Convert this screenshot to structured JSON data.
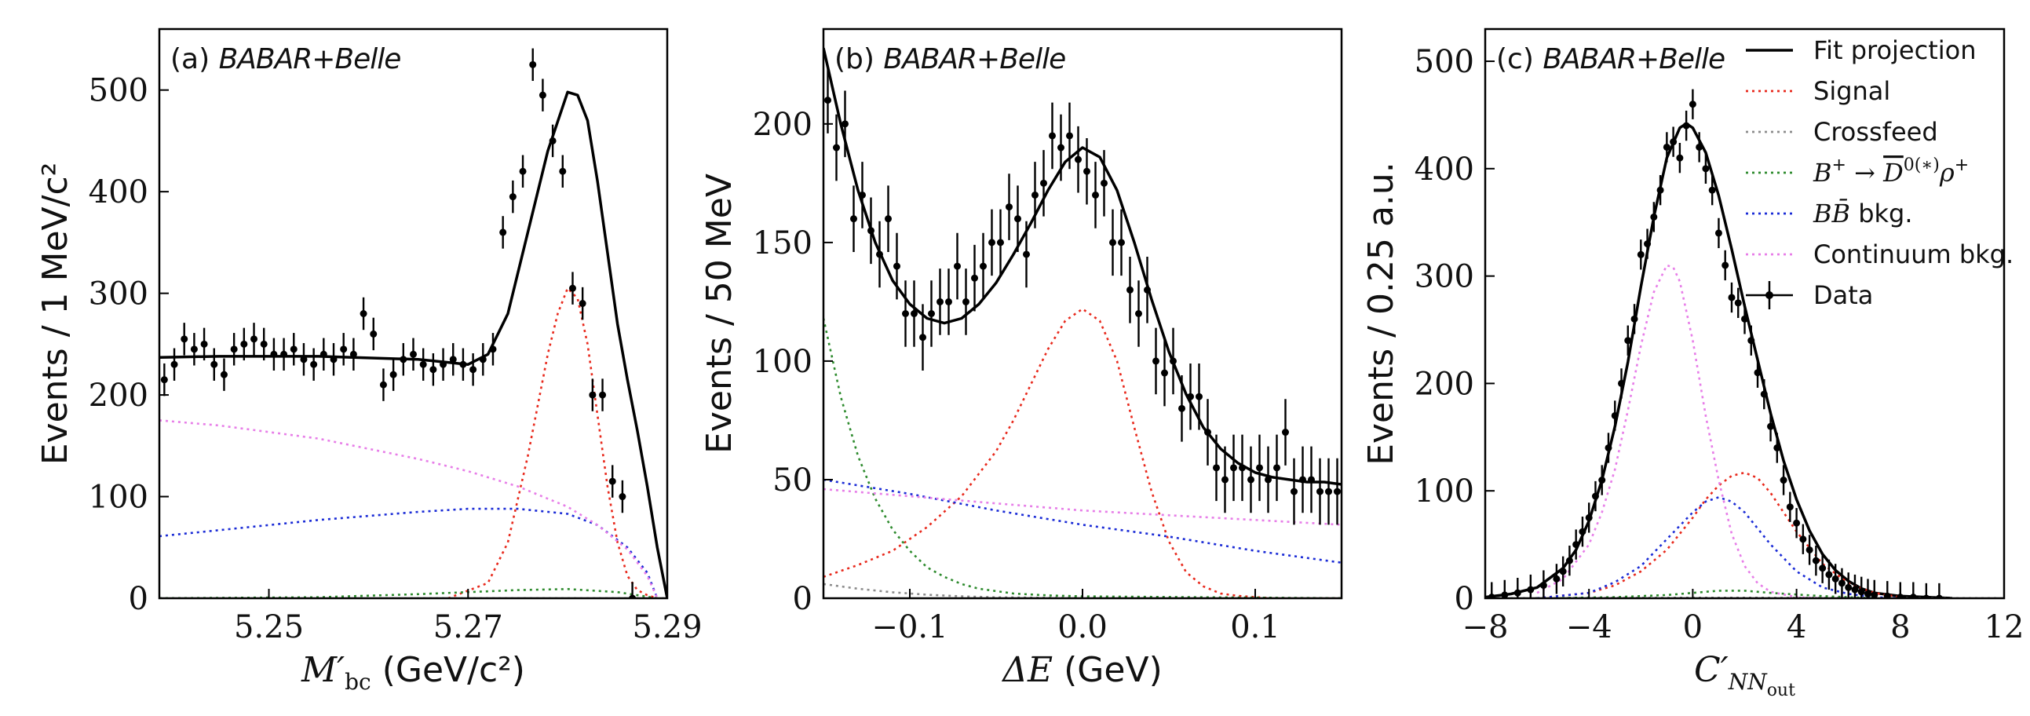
{
  "chart_data": [
    {
      "type": "line",
      "panel": "(a)",
      "experiment": "BABAR+Belle",
      "xlabel": "M'_bc (GeV/c²)",
      "ylabel": "Events / 1 MeV/c²",
      "xlim": [
        5.239,
        5.29
      ],
      "ylim": [
        0,
        560
      ],
      "xticks": [
        5.25,
        5.27,
        5.29
      ],
      "yticks": [
        0,
        100,
        200,
        300,
        400,
        500
      ],
      "data": {
        "x": [
          5.2395,
          5.2405,
          5.2415,
          5.2425,
          5.2435,
          5.2445,
          5.2455,
          5.2465,
          5.2475,
          5.2485,
          5.2495,
          5.2505,
          5.2515,
          5.2525,
          5.2535,
          5.2545,
          5.2555,
          5.2565,
          5.2575,
          5.2585,
          5.2595,
          5.2605,
          5.2615,
          5.2625,
          5.2635,
          5.2645,
          5.2655,
          5.2665,
          5.2675,
          5.2685,
          5.2695,
          5.2705,
          5.2715,
          5.2725,
          5.2735,
          5.2745,
          5.2755,
          5.2765,
          5.2775,
          5.2785,
          5.2795,
          5.2805,
          5.2815,
          5.2825,
          5.2835,
          5.2845,
          5.2855,
          5.2865
        ],
        "y": [
          215,
          230,
          255,
          245,
          250,
          230,
          220,
          245,
          250,
          255,
          250,
          240,
          240,
          245,
          235,
          230,
          240,
          235,
          245,
          240,
          280,
          260,
          210,
          220,
          235,
          240,
          230,
          225,
          230,
          235,
          230,
          225,
          235,
          245,
          360,
          395,
          420,
          525,
          495,
          450,
          420,
          305,
          290,
          200,
          200,
          115,
          100,
          0
        ],
        "err": 16
      },
      "series": [
        {
          "name": "Fit projection",
          "color": "#000000",
          "x": [
            5.239,
            5.245,
            5.255,
            5.265,
            5.268,
            5.27,
            5.272,
            5.274,
            5.276,
            5.278,
            5.28,
            5.281,
            5.282,
            5.283,
            5.284,
            5.285,
            5.286,
            5.287,
            5.288,
            5.289,
            5.29
          ],
          "y": [
            237,
            238,
            238,
            235,
            232,
            230,
            240,
            280,
            360,
            440,
            498,
            495,
            470,
            410,
            340,
            270,
            215,
            165,
            110,
            50,
            0
          ]
        },
        {
          "name": "Signal",
          "color": "#e8291c",
          "x": [
            5.268,
            5.272,
            5.274,
            5.276,
            5.278,
            5.279,
            5.28,
            5.281,
            5.282,
            5.283,
            5.284,
            5.285,
            5.286,
            5.287,
            5.288,
            5.289
          ],
          "y": [
            0,
            15,
            55,
            140,
            240,
            280,
            305,
            295,
            250,
            180,
            110,
            55,
            22,
            8,
            3,
            0
          ]
        },
        {
          "name": "Crossfeed",
          "color": "#8c8c8c",
          "x": [
            5.239,
            5.29
          ],
          "y": [
            0,
            0
          ]
        },
        {
          "name": "B+ → D̄0(*) ρ+",
          "color": "#2e8b2e",
          "x": [
            5.239,
            5.255,
            5.265,
            5.275,
            5.28,
            5.285,
            5.289
          ],
          "y": [
            0,
            1,
            4,
            8,
            9,
            6,
            0
          ]
        },
        {
          "name": "BB̄ bkg.",
          "color": "#1a2bd6",
          "x": [
            5.239,
            5.245,
            5.255,
            5.265,
            5.27,
            5.275,
            5.28,
            5.283,
            5.286,
            5.288,
            5.289
          ],
          "y": [
            61,
            67,
            77,
            85,
            88,
            88,
            83,
            72,
            50,
            25,
            0
          ]
        },
        {
          "name": "Continuum bkg.",
          "color": "#e77ee8",
          "x": [
            5.239,
            5.245,
            5.255,
            5.265,
            5.27,
            5.275,
            5.28,
            5.283,
            5.286,
            5.288,
            5.289
          ],
          "y": [
            175,
            170,
            157,
            137,
            125,
            110,
            90,
            72,
            48,
            22,
            0
          ]
        }
      ]
    },
    {
      "type": "line",
      "panel": "(b)",
      "experiment": "BABAR+Belle",
      "xlabel": "ΔE (GeV)",
      "ylabel": "Events / 50 MeV",
      "xlim": [
        -0.15,
        0.15
      ],
      "ylim": [
        0,
        240
      ],
      "xticks": [
        -0.1,
        0.0,
        0.1
      ],
      "yticks": [
        0,
        50,
        100,
        150,
        200
      ],
      "data": {
        "x": [
          -0.1475,
          -0.1425,
          -0.1375,
          -0.1325,
          -0.1275,
          -0.1225,
          -0.1175,
          -0.1125,
          -0.1075,
          -0.1025,
          -0.0975,
          -0.0925,
          -0.0875,
          -0.0825,
          -0.0775,
          -0.0725,
          -0.0675,
          -0.0625,
          -0.0575,
          -0.0525,
          -0.0475,
          -0.0425,
          -0.0375,
          -0.0325,
          -0.0275,
          -0.0225,
          -0.0175,
          -0.0125,
          -0.0075,
          -0.0025,
          0.0025,
          0.0075,
          0.0125,
          0.0175,
          0.0225,
          0.0275,
          0.0325,
          0.0375,
          0.0425,
          0.0475,
          0.0525,
          0.0575,
          0.0625,
          0.0675,
          0.0725,
          0.0775,
          0.0825,
          0.0875,
          0.0925,
          0.0975,
          0.1025,
          0.1075,
          0.1125,
          0.1175,
          0.1225,
          0.1275,
          0.1325,
          0.1375,
          0.1425,
          0.1475
        ],
        "y": [
          210,
          190,
          200,
          160,
          170,
          155,
          145,
          160,
          140,
          120,
          120,
          110,
          120,
          125,
          125,
          140,
          125,
          135,
          140,
          150,
          150,
          165,
          160,
          145,
          170,
          175,
          195,
          190,
          195,
          185,
          180,
          170,
          175,
          150,
          150,
          130,
          120,
          130,
          100,
          95,
          100,
          80,
          85,
          85,
          70,
          55,
          50,
          55,
          55,
          50,
          55,
          50,
          55,
          70,
          45,
          50,
          50,
          45,
          45,
          45
        ],
        "err": 14
      },
      "series": [
        {
          "name": "Fit projection",
          "color": "#000000",
          "x": [
            -0.15,
            -0.14,
            -0.13,
            -0.12,
            -0.11,
            -0.1,
            -0.09,
            -0.08,
            -0.07,
            -0.06,
            -0.05,
            -0.04,
            -0.03,
            -0.02,
            -0.01,
            0.0,
            0.01,
            0.02,
            0.03,
            0.04,
            0.05,
            0.06,
            0.07,
            0.08,
            0.09,
            0.1,
            0.11,
            0.12,
            0.13,
            0.14,
            0.15
          ],
          "y": [
            232,
            200,
            172,
            150,
            134,
            124,
            118,
            116,
            118,
            124,
            133,
            145,
            158,
            172,
            184,
            190,
            186,
            172,
            150,
            126,
            104,
            86,
            72,
            63,
            57,
            53,
            51,
            50,
            49,
            49,
            48
          ]
        },
        {
          "name": "Signal",
          "color": "#e8291c",
          "x": [
            -0.15,
            -0.13,
            -0.11,
            -0.09,
            -0.07,
            -0.05,
            -0.04,
            -0.03,
            -0.02,
            -0.01,
            0.0,
            0.01,
            0.02,
            0.03,
            0.04,
            0.05,
            0.06,
            0.07,
            0.08,
            0.09,
            0.11,
            0.13,
            0.15
          ],
          "y": [
            9,
            14,
            20,
            30,
            43,
            62,
            75,
            90,
            105,
            117,
            122,
            117,
            100,
            72,
            45,
            24,
            11,
            5,
            2,
            1,
            0,
            0,
            0
          ]
        },
        {
          "name": "Crossfeed",
          "color": "#8c8c8c",
          "x": [
            -0.15,
            -0.13,
            -0.11,
            -0.09,
            -0.07,
            -0.05,
            0.0,
            0.15
          ],
          "y": [
            6,
            4,
            2.5,
            1.5,
            0.8,
            0.4,
            0.1,
            0
          ]
        },
        {
          "name": "B+ → D̄0(*) ρ+",
          "color": "#2e8b2e",
          "x": [
            -0.15,
            -0.14,
            -0.13,
            -0.12,
            -0.11,
            -0.1,
            -0.09,
            -0.08,
            -0.07,
            -0.06,
            -0.05,
            -0.04,
            -0.02,
            0.0,
            0.15
          ],
          "y": [
            118,
            85,
            60,
            42,
            29,
            20,
            13,
            9,
            6,
            4,
            3,
            2,
            1.2,
            0.8,
            0
          ]
        },
        {
          "name": "BB̄ bkg.",
          "color": "#1a2bd6",
          "x": [
            -0.15,
            -0.1,
            -0.05,
            0.0,
            0.05,
            0.1,
            0.15
          ],
          "y": [
            50,
            44,
            37,
            31,
            26,
            20,
            15
          ]
        },
        {
          "name": "Continuum bkg.",
          "color": "#e77ee8",
          "x": [
            -0.15,
            -0.1,
            -0.05,
            0.0,
            0.05,
            0.1,
            0.15
          ],
          "y": [
            46,
            43,
            40,
            37,
            35,
            33,
            31
          ]
        }
      ]
    },
    {
      "type": "line",
      "panel": "(c)",
      "experiment": "BABAR+Belle",
      "xlabel": "C′_NNout",
      "ylabel": "Events / 0.25 a.u.",
      "xlim": [
        -8,
        12
      ],
      "ylim": [
        0,
        530
      ],
      "xticks": [
        -8,
        -4,
        0,
        4,
        8,
        12
      ],
      "yticks": [
        0,
        100,
        200,
        300,
        400,
        500
      ],
      "data": {
        "x": [
          -7.75,
          -7.25,
          -6.75,
          -6.25,
          -5.75,
          -5.25,
          -5,
          -4.75,
          -4.5,
          -4.25,
          -4,
          -3.75,
          -3.5,
          -3.25,
          -3,
          -2.75,
          -2.5,
          -2.25,
          -2,
          -1.75,
          -1.5,
          -1.25,
          -1,
          -0.75,
          -0.5,
          -0.25,
          0,
          0.25,
          0.5,
          0.75,
          1,
          1.25,
          1.5,
          1.75,
          2,
          2.25,
          2.5,
          2.75,
          3,
          3.25,
          3.5,
          3.75,
          4,
          4.25,
          4.5,
          4.75,
          5,
          5.25,
          5.5,
          5.75,
          6,
          6.25,
          6.5,
          6.75,
          7,
          7.5,
          8,
          8.5,
          9,
          9.5
        ],
        "y": [
          1,
          3,
          5,
          8,
          12,
          18,
          25,
          35,
          50,
          62,
          75,
          95,
          110,
          140,
          170,
          200,
          240,
          260,
          320,
          330,
          355,
          380,
          420,
          425,
          410,
          440,
          460,
          420,
          400,
          380,
          340,
          310,
          280,
          275,
          260,
          240,
          210,
          190,
          160,
          140,
          110,
          85,
          70,
          55,
          45,
          35,
          28,
          22,
          18,
          14,
          10,
          8,
          6,
          4,
          3,
          2,
          1,
          1,
          0,
          0
        ],
        "err": 14
      },
      "series": [
        {
          "name": "Fit projection",
          "color": "#000000",
          "x": [
            -8,
            -7,
            -6,
            -5,
            -4.5,
            -4,
            -3.5,
            -3,
            -2.5,
            -2,
            -1.5,
            -1,
            -0.5,
            -0.25,
            0,
            0.5,
            1,
            1.5,
            2,
            2.5,
            3,
            3.5,
            4,
            4.5,
            5,
            5.5,
            6,
            6.5,
            7,
            8,
            9,
            10
          ],
          "y": [
            1,
            4,
            10,
            28,
            45,
            72,
            110,
            160,
            220,
            290,
            355,
            410,
            438,
            442,
            438,
            415,
            375,
            325,
            272,
            222,
            172,
            128,
            92,
            63,
            41,
            26,
            16,
            9,
            5,
            2,
            1,
            0
          ]
        },
        {
          "name": "Signal",
          "color": "#e8291c",
          "x": [
            -6,
            -4,
            -3,
            -2,
            -1,
            0,
            0.5,
            1,
            1.5,
            2,
            2.5,
            3,
            3.5,
            4,
            5,
            6,
            7,
            8
          ],
          "y": [
            0,
            5,
            12,
            25,
            45,
            75,
            92,
            105,
            114,
            117,
            112,
            98,
            80,
            62,
            32,
            14,
            5,
            1
          ]
        },
        {
          "name": "Crossfeed",
          "color": "#8c8c8c",
          "x": [
            -8,
            0,
            2,
            12
          ],
          "y": [
            0,
            0.5,
            0.5,
            0
          ]
        },
        {
          "name": "B+ → D̄0(*) ρ+",
          "color": "#2e8b2e",
          "x": [
            -6,
            -3,
            -1,
            0,
            1,
            2,
            3,
            5,
            7
          ],
          "y": [
            0,
            1,
            3,
            5,
            7,
            7,
            5,
            2,
            0
          ]
        },
        {
          "name": "BB̄ bkg.",
          "color": "#1a2bd6",
          "x": [
            -6,
            -4,
            -3,
            -2,
            -1,
            0,
            0.5,
            1,
            1.5,
            2,
            2.5,
            3,
            4,
            5,
            6,
            7,
            8
          ],
          "y": [
            0,
            5,
            15,
            30,
            55,
            80,
            90,
            94,
            90,
            80,
            65,
            50,
            25,
            10,
            4,
            1,
            0
          ]
        },
        {
          "name": "Continuum bkg.",
          "color": "#e77ee8",
          "x": [
            -6,
            -5,
            -4,
            -3.5,
            -3,
            -2.5,
            -2,
            -1.5,
            -1,
            -0.75,
            -0.5,
            0,
            0.5,
            1,
            1.5,
            2,
            2.5,
            3,
            4,
            5
          ],
          "y": [
            5,
            18,
            50,
            80,
            120,
            175,
            235,
            285,
            310,
            308,
            295,
            240,
            170,
            110,
            60,
            30,
            14,
            6,
            1,
            0
          ]
        }
      ]
    }
  ],
  "legend": {
    "entries": [
      {
        "label": "Fit projection",
        "color": "#000000",
        "style": "solid"
      },
      {
        "label": "Signal",
        "color": "#e8291c",
        "style": "dotted"
      },
      {
        "label": "Crossfeed",
        "color": "#8c8c8c",
        "style": "dotted"
      },
      {
        "label": "B+ → D̄0(*) ρ+",
        "color": "#2e8b2e",
        "style": "dotted"
      },
      {
        "label": "BB̄ bkg.",
        "color": "#1a2bd6",
        "style": "dotted"
      },
      {
        "label": "Continuum bkg.",
        "color": "#e77ee8",
        "style": "dotted"
      },
      {
        "label": "Data",
        "color": "#000000",
        "style": "errorbar"
      }
    ],
    "placement": "top-right"
  }
}
